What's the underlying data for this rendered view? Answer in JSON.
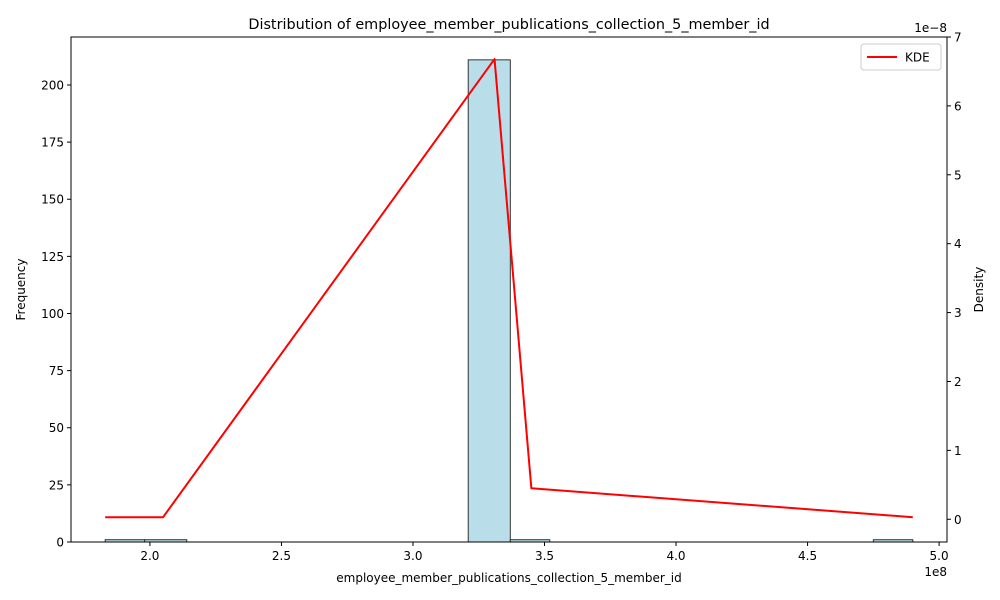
{
  "chart_data": {
    "type": "bar",
    "title": "Distribution of employee_member_publications_collection_5_member_id",
    "xlabel": "employee_member_publications_collection_5_member_id",
    "ylabel": "Frequency",
    "ylabel_right": "Density",
    "x_offset_text": "1e8",
    "y2_offset_text": "1e−8",
    "xlim": [
      170000000.0,
      503000000.0
    ],
    "ylim": [
      0,
      221
    ],
    "y2lim": [
      -3.3e-09,
      7e-08
    ],
    "x_ticks": [
      200000000.0,
      250000000.0,
      300000000.0,
      350000000.0,
      400000000.0,
      450000000.0,
      500000000.0
    ],
    "x_tick_labels": [
      "2.0",
      "2.5",
      "3.0",
      "3.5",
      "4.0",
      "4.5",
      "5.0"
    ],
    "y_ticks": [
      0,
      25,
      50,
      75,
      100,
      125,
      150,
      175,
      200
    ],
    "y_tick_labels": [
      "0",
      "25",
      "50",
      "75",
      "100",
      "125",
      "150",
      "175",
      "200"
    ],
    "y2_ticks": [
      0,
      1e-08,
      2e-08,
      3e-08,
      4e-08,
      5e-08,
      6e-08,
      7e-08
    ],
    "y2_tick_labels": [
      "0",
      "1",
      "2",
      "3",
      "4",
      "5",
      "6",
      "7"
    ],
    "histogram": {
      "bin_edges": [
        183000000.0,
        198000000.0,
        214000000.0,
        229000000.0,
        245000000.0,
        260000000.0,
        275000000.0,
        291000000.0,
        306000000.0,
        321000000.0,
        337000000.0,
        352000000.0,
        367000000.0,
        383000000.0,
        398000000.0,
        414000000.0,
        429000000.0,
        444000000.0,
        460000000.0,
        475000000.0,
        490000000.0
      ],
      "counts": [
        1,
        1,
        0,
        0,
        0,
        0,
        0,
        0,
        0,
        211,
        1,
        0,
        0,
        0,
        0,
        0,
        0,
        0,
        0,
        1
      ],
      "color": "#add8e6"
    },
    "series": [
      {
        "name": "KDE",
        "axis": "right",
        "color": "#ff0000",
        "x": [
          183000000.0,
          205000000.0,
          331000000.0,
          345000000.0,
          490000000.0
        ],
        "values": [
          3e-10,
          3e-10,
          6.68e-08,
          4.5e-09,
          3e-10
        ]
      }
    ],
    "legend": {
      "position": "top-right",
      "entries": [
        "KDE"
      ]
    },
    "grid": false
  }
}
